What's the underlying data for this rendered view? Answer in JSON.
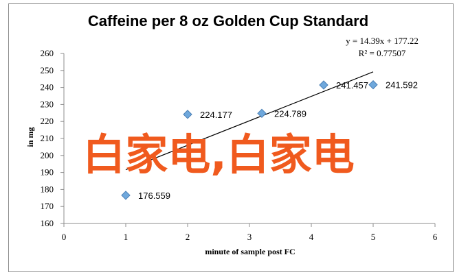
{
  "chart_data": {
    "type": "scatter",
    "title": "Caffeine per 8 oz Golden Cup Standard",
    "xlabel": "minute of sample post FC",
    "ylabel": "in mg",
    "xlim": [
      0,
      6
    ],
    "ylim": [
      160,
      260
    ],
    "xticks": [
      "0",
      "1",
      "2",
      "3",
      "4",
      "5",
      "6"
    ],
    "yticks": [
      "160",
      "170",
      "180",
      "190",
      "200",
      "210",
      "220",
      "230",
      "240",
      "250",
      "260"
    ],
    "grid": false,
    "legend": "none",
    "points": [
      {
        "x": 1,
        "y": 176.559,
        "label": "176.559"
      },
      {
        "x": 2,
        "y": 224.177,
        "label": "224.177"
      },
      {
        "x": 3.2,
        "y": 224.789,
        "label": "224.789"
      },
      {
        "x": 4.2,
        "y": 241.457,
        "label": "241.457"
      },
      {
        "x": 5,
        "y": 241.592,
        "label": "241.592"
      }
    ],
    "trendline": {
      "equation": "y = 14.39x + 177.22",
      "r_squared": "R² = 0.77507",
      "slope": 14.39,
      "intercept": 177.22,
      "x_range": [
        1,
        5
      ]
    },
    "colors": {
      "marker": "#6fa8dc",
      "marker_edge": "#4a7fb5",
      "trendline": "#000000"
    }
  },
  "overlay_text": "白家电,白家电",
  "overlay_color": "#f05a1e"
}
